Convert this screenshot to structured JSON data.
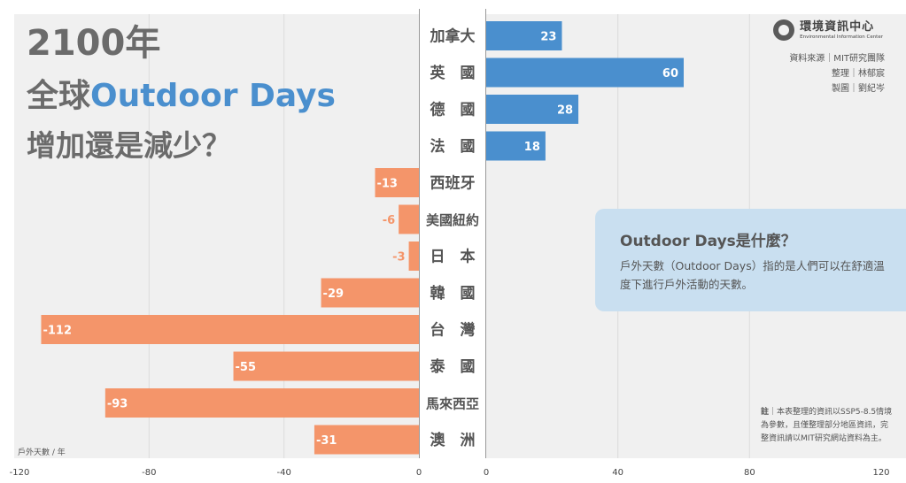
{
  "title": {
    "line1": "2100年",
    "line2_prefix": "全球",
    "line2_highlight": "Outdoor Days",
    "line3": "增加還是減少？"
  },
  "logo": {
    "name_cn": "環境資訊中心",
    "name_en": "Environmental Information Center"
  },
  "credits": {
    "source": "資料來源｜MIT研究團隊",
    "editor": "整理｜林郁宸",
    "designer": "製圖｜劉紀岑"
  },
  "info_box": {
    "title": "Outdoor Days是什麼？",
    "body": "戶外天數（Outdoor Days）指的是人們可以在舒適溫度下進行戶外活動的天數。"
  },
  "note": {
    "label": "註",
    "text": "｜本表整理的資訊以SSP5-8.5情境為參數，且僅整理部分地區資訊，完整資訊請以MIT研究網站資料為主。"
  },
  "colors": {
    "positive": "#4a8fce",
    "negative": "#f4956a",
    "highlight": "#4a8fce",
    "panel": "#f0f0f0"
  },
  "chart_data": {
    "type": "bar",
    "orientation": "horizontal",
    "categories": [
      "加拿大",
      "英　國",
      "德　國",
      "法　國",
      "西班牙",
      "美國紐約",
      "日　本",
      "韓　國",
      "台　灣",
      "泰　國",
      "馬來西亞",
      "澳　洲"
    ],
    "values": [
      23,
      60,
      28,
      18,
      -13,
      -6,
      -3,
      -29,
      -112,
      -55,
      -93,
      -31
    ],
    "unit_label": "戶外天數 / 年",
    "neg_ticks": [
      "-120",
      "-80",
      "-40",
      "0"
    ],
    "pos_ticks": [
      "0",
      "40",
      "80",
      "120"
    ],
    "xlim": [
      -120,
      120
    ],
    "grid": true
  }
}
